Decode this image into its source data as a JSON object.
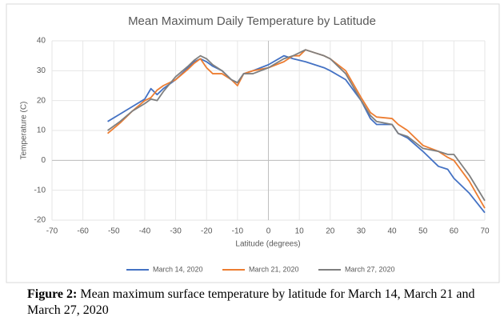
{
  "chart_data": {
    "type": "line",
    "title": "Mean Maximum Daily Temperature by Latitude",
    "x_label": "Latitude (degrees)",
    "y_label": "Temperature (C)",
    "x": [
      -52,
      -48,
      -44,
      -40,
      -38,
      -36,
      -34,
      -30,
      -26,
      -24,
      -22,
      -20,
      -18,
      -15,
      -12,
      -10,
      -8,
      -5,
      0,
      5,
      8,
      10,
      12,
      15,
      18,
      20,
      25,
      30,
      33,
      35,
      40,
      42,
      45,
      50,
      55,
      58,
      60,
      65,
      70
    ],
    "series": [
      {
        "name": "March 14, 2020",
        "color": "#4472c4",
        "values": [
          13,
          15.5,
          18,
          20.5,
          24,
          22,
          24,
          27,
          31,
          33,
          34,
          33,
          31.5,
          30,
          27,
          26,
          29,
          30,
          32,
          35,
          34,
          33.5,
          33,
          32,
          31,
          30,
          27,
          20,
          14,
          12,
          12,
          9,
          7.5,
          3,
          -2,
          -3,
          -6,
          -11,
          -17.5
        ]
      },
      {
        "name": "March 21, 2020",
        "color": "#ed7d31",
        "values": [
          9,
          12.5,
          16.5,
          20,
          21,
          23.5,
          25,
          27,
          30.5,
          32.5,
          34,
          31,
          29,
          29,
          27,
          25,
          29,
          30,
          31,
          33,
          35,
          35,
          37,
          36,
          35,
          34,
          30,
          21,
          16,
          14.5,
          14,
          12,
          10,
          5,
          3,
          1,
          0,
          -7,
          -16
        ]
      },
      {
        "name": "March 27, 2020",
        "color": "#7f7f7f",
        "values": [
          10,
          13,
          16.5,
          19,
          20.5,
          20,
          23,
          28,
          31.5,
          33.5,
          35,
          34,
          32,
          30,
          27,
          26,
          29,
          29,
          31,
          34,
          35,
          36,
          37,
          36,
          35,
          34,
          29,
          20,
          15,
          13,
          12,
          9,
          8,
          4,
          3,
          2,
          2,
          -5,
          -13.5
        ]
      }
    ],
    "xlim": [
      -70,
      70
    ],
    "xticks": [
      -70,
      -60,
      -50,
      -40,
      -30,
      -20,
      -10,
      0,
      10,
      20,
      30,
      40,
      50,
      60,
      70
    ],
    "ylim": [
      -20,
      40
    ],
    "yticks": [
      -20,
      -10,
      0,
      10,
      20,
      30,
      40
    ],
    "grid": true,
    "legend": "bottom"
  },
  "figure_caption": {
    "label": "Figure 2:",
    "text": "Mean maximum surface temperature by latitude for March 14, March 21 and March 27, 2020"
  }
}
